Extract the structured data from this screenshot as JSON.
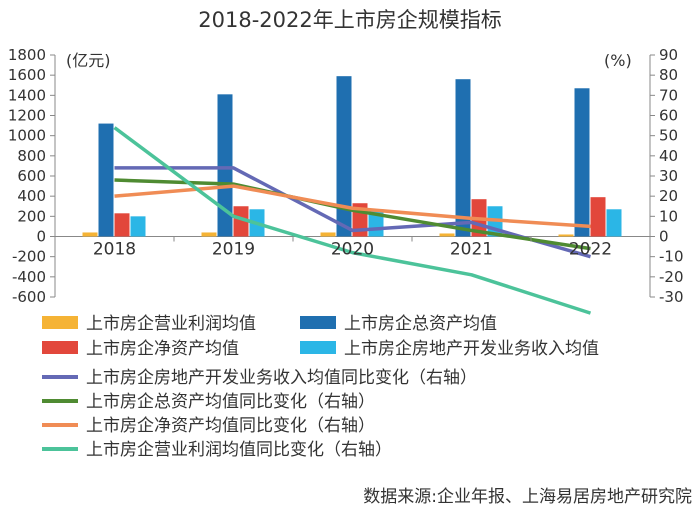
{
  "chart_data": {
    "type": "bar",
    "title": "2018-2022年上市房企规模指标",
    "left_unit": "(亿元)",
    "right_unit": "(%)",
    "categories": [
      "2018",
      "2019",
      "2020",
      "2021",
      "2022"
    ],
    "y_left": {
      "min": -600,
      "max": 1800,
      "ticks": [
        "-600",
        "-400",
        "-200",
        "0",
        "200",
        "400",
        "600",
        "800",
        "1000",
        "1200",
        "1400",
        "1600",
        "1800"
      ]
    },
    "y_right": {
      "min": -30,
      "max": 90,
      "ticks": [
        "-30",
        "-20",
        "-10",
        "0",
        "10",
        "20",
        "30",
        "40",
        "50",
        "60",
        "70",
        "80",
        "90"
      ]
    },
    "bar_series": [
      {
        "name": "上市房企营业利润均值",
        "color": "#f5b335",
        "values": [
          40,
          40,
          40,
          30,
          20
        ]
      },
      {
        "name": "上市房企总资产均值",
        "color": "#1f6fb0",
        "values": [
          1120,
          1410,
          1590,
          1560,
          1470
        ]
      },
      {
        "name": "上市房企净资产均值",
        "color": "#e2473b",
        "values": [
          230,
          300,
          330,
          370,
          390
        ]
      },
      {
        "name": "上市房企房地产开发业务收入均值",
        "color": "#2bb6e6",
        "values": [
          200,
          270,
          270,
          300,
          270
        ]
      }
    ],
    "line_series": [
      {
        "name": "上市房企房地产开发业务收入均值同比变化（右轴）",
        "color": "#6469b5",
        "values": [
          34,
          34,
          3,
          7,
          -10
        ]
      },
      {
        "name": "上市房企总资产均值同比变化（右轴）",
        "color": "#4f8b32",
        "values": [
          28,
          26,
          13,
          3,
          -6
        ]
      },
      {
        "name": "上市房企净资产均值同比变化（右轴）",
        "color": "#f08c55",
        "values": [
          20,
          25,
          14,
          9,
          5
        ]
      },
      {
        "name": "上市房企营业利润均值同比变化（右轴）",
        "color": "#4cc39a",
        "values": [
          54,
          10,
          -8,
          -19,
          -38
        ]
      }
    ],
    "legend_position": "bottom"
  },
  "source": "数据来源:企业年报、上海易居房地产研究院"
}
